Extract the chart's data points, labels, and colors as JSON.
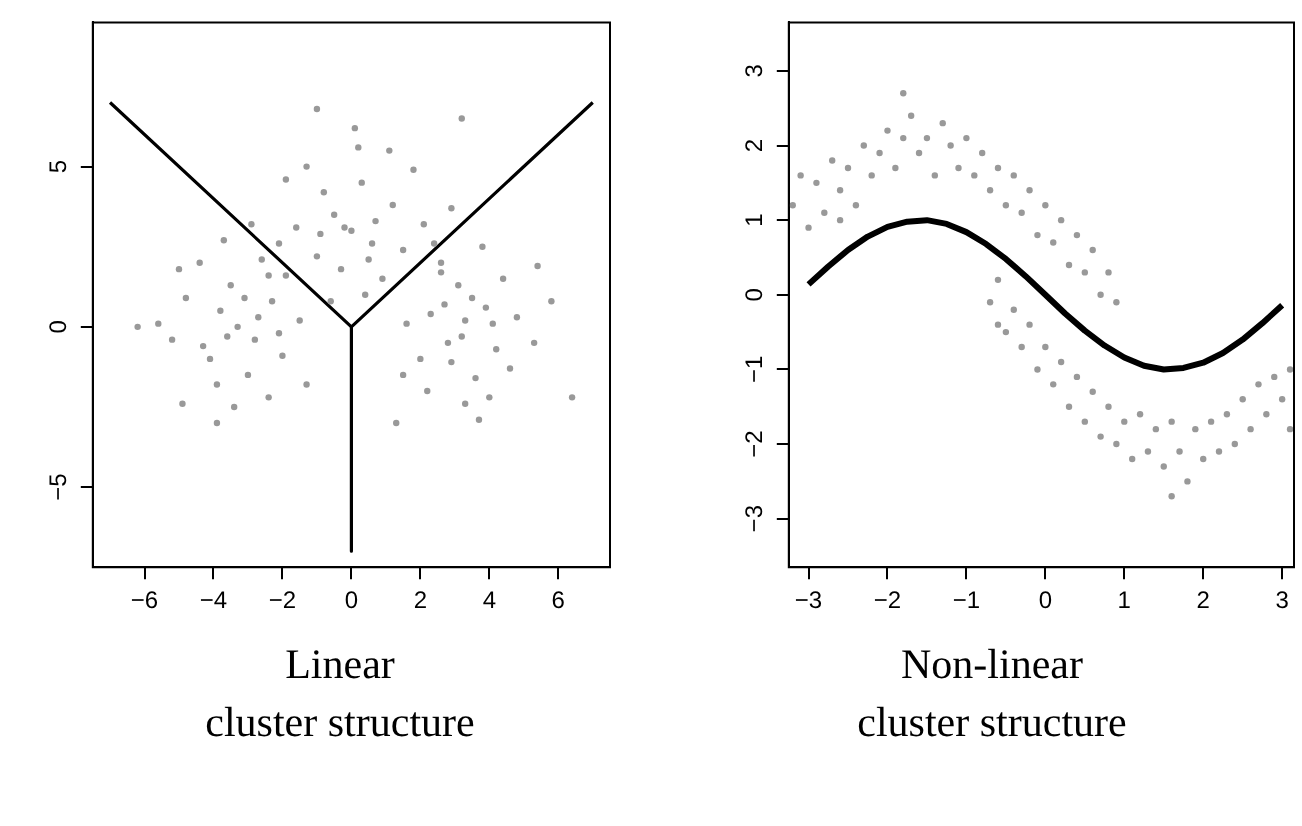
{
  "chart_data": [
    {
      "type": "scatter",
      "xlabel": "Linear cluster structure",
      "grid": false,
      "legend": false,
      "xlim": [
        -7.5,
        7.5
      ],
      "ylim": [
        -7.5,
        9.5
      ],
      "xticks": [
        {
          "value": -6,
          "label": "−6"
        },
        {
          "value": -4,
          "label": "−4"
        },
        {
          "value": -2,
          "label": "−2"
        },
        0,
        2,
        4,
        6
      ],
      "yticks": [
        {
          "value": -5,
          "label": "−5"
        },
        0,
        5
      ],
      "series": [
        {
          "marker": "circle",
          "color": "#999999",
          "x": [
            0,
            -0.5,
            0.6,
            -1,
            1.2,
            0.3,
            -0.8,
            1.5,
            -1.6,
            0.9,
            -0.3,
            2.1,
            -2.1,
            0.2,
            -1.3,
            1.8,
            0.4,
            -0.6,
            2.6,
            -2.4,
            0.1,
            -1.9,
            1.1,
            2.9,
            -0.2,
            0.7,
            -0.9,
            0.5,
            3.2,
            -1,
            -3.3,
            -3.8,
            -2.8,
            -4.3,
            -2.3,
            -3.5,
            -3,
            -4.8,
            -2,
            -3.9,
            -1.9,
            -5.2,
            -2.6,
            -4.4,
            -3.4,
            -1.5,
            -5.6,
            -2.4,
            -4.1,
            -3.1,
            -2.7,
            -3.6,
            -6.2,
            -2.9,
            -4.9,
            -1.3,
            -3.9,
            -5,
            -2.1,
            -3.7,
            3.3,
            2.8,
            3.9,
            2.3,
            4.2,
            3.1,
            3.6,
            4.8,
            2,
            2.6,
            4.4,
            3.3,
            5.3,
            1.6,
            4,
            2.2,
            3.8,
            5.8,
            1.5,
            2.9,
            3.5,
            4.6,
            5.4,
            2.4,
            3.2,
            4.1,
            6.4,
            1.3,
            3.7,
            2.7
          ],
          "values": [
            3,
            3.5,
            2.6,
            2.2,
            3.8,
            4.5,
            4.2,
            2.4,
            3.1,
            1.5,
            1.8,
            3.2,
            2.6,
            5.6,
            5,
            4.9,
            1,
            0.8,
            2,
            1.6,
            6.2,
            4.6,
            5.5,
            3.7,
            3.1,
            3.3,
            2.9,
            2.1,
            6.5,
            6.8,
            0,
            0.5,
            -0.4,
            -0.6,
            0.8,
            1.3,
            -1.5,
            0.9,
            -0.9,
            -1.8,
            1.6,
            -0.4,
            2.1,
            2,
            -2.5,
            0.2,
            0.1,
            -2.2,
            -1,
            0.9,
            0.3,
            -0.3,
            0,
            3.2,
            -2.4,
            -1.8,
            -3,
            1.8,
            -0.2,
            2.7,
            0.2,
            -0.5,
            0.6,
            0.4,
            -0.7,
            1.3,
            -1.6,
            0.3,
            -1,
            1.7,
            1.5,
            -2.4,
            -0.5,
            0.1,
            -2.2,
            -2,
            2.5,
            0.8,
            -1.5,
            -1.1,
            0.9,
            -1.3,
            1.9,
            2.6,
            -0.3,
            0.1,
            -2.2,
            -3,
            -2.9,
            0.7
          ]
        },
        {
          "type": "line",
          "marker": "none",
          "color": "#000000",
          "x": [
            -7,
            0,
            7
          ],
          "values": [
            7,
            0,
            7
          ]
        },
        {
          "type": "line",
          "marker": "none",
          "color": "#000000",
          "x": [
            0,
            0
          ],
          "values": [
            0,
            -7
          ]
        }
      ]
    },
    {
      "type": "scatter",
      "xlabel": "Non-linear cluster structure",
      "grid": false,
      "legend": false,
      "xlim": [
        -3.25,
        3.15
      ],
      "ylim": [
        -3.65,
        3.65
      ],
      "xticks": [
        {
          "value": -3,
          "label": "−3"
        },
        {
          "value": -2,
          "label": "−2"
        },
        {
          "value": -1,
          "label": "−1"
        },
        0,
        1,
        2,
        3
      ],
      "yticks": [
        {
          "value": -3,
          "label": "−3"
        },
        {
          "value": -2,
          "label": "−2"
        },
        {
          "value": -1,
          "label": "−1"
        },
        0,
        1,
        2,
        3
      ],
      "series": [
        {
          "marker": "circle",
          "color": "#999999",
          "x": [
            -3.2,
            -3.1,
            -3,
            -2.9,
            -2.8,
            -2.7,
            -2.6,
            -2.5,
            -2.4,
            -2.3,
            -2.2,
            -2.1,
            -2,
            -1.9,
            -1.8,
            -1.7,
            -1.6,
            -1.5,
            -1.4,
            -1.3,
            -1.2,
            -1.1,
            -1,
            -0.9,
            -0.8,
            -0.7,
            -0.6,
            -0.5,
            -0.4,
            -0.3,
            -0.2,
            -0.1,
            0,
            0.1,
            0.2,
            0.3,
            0.4,
            0.5,
            0.6,
            0.7,
            0.8,
            -1.8,
            -2.6,
            0.9,
            -0.7,
            -0.6,
            -0.5,
            -0.4,
            -0.3,
            -0.2,
            -0.1,
            0,
            0.1,
            0.2,
            0.3,
            0.4,
            0.5,
            0.6,
            0.7,
            0.8,
            0.9,
            1,
            1.1,
            1.2,
            1.3,
            1.4,
            1.5,
            1.6,
            1.7,
            1.8,
            1.9,
            2,
            2.1,
            2.2,
            2.3,
            2.4,
            2.5,
            2.6,
            2.7,
            2.8,
            2.9,
            3,
            3.1,
            1.6,
            -0.6,
            3.1
          ],
          "values": [
            1.2,
            1.6,
            0.9,
            1.5,
            1.1,
            1.8,
            1.4,
            1.7,
            1.2,
            2,
            1.6,
            1.9,
            2.2,
            1.7,
            2.1,
            2.4,
            1.9,
            2.1,
            1.6,
            2.3,
            2,
            1.7,
            2.1,
            1.6,
            1.9,
            1.4,
            1.7,
            1.2,
            1.6,
            1.1,
            1.4,
            0.8,
            1.2,
            0.7,
            1,
            0.4,
            0.8,
            0.3,
            0.6,
            0,
            0.3,
            2.7,
            1,
            -0.1,
            -0.1,
            0.2,
            -0.5,
            -0.2,
            -0.7,
            -0.4,
            -1,
            -0.7,
            -1.2,
            -0.9,
            -1.5,
            -1.1,
            -1.7,
            -1.3,
            -1.9,
            -1.5,
            -2,
            -1.7,
            -2.2,
            -1.6,
            -2.1,
            -1.8,
            -2.3,
            -1.7,
            -2.1,
            -2.5,
            -1.8,
            -2.2,
            -1.7,
            -2.1,
            -1.6,
            -2,
            -1.4,
            -1.8,
            -1.2,
            -1.6,
            -1.1,
            -1.4,
            -1,
            -2.7,
            -0.4,
            -1.8
          ]
        },
        {
          "type": "line",
          "marker": "none",
          "color": "#000000",
          "x": [
            -3,
            -2.75,
            -2.5,
            -2.25,
            -2,
            -1.75,
            -1.5,
            -1.25,
            -1,
            -0.75,
            -0.5,
            -0.25,
            0,
            0.25,
            0.5,
            0.75,
            1,
            1.25,
            1.5,
            1.75,
            2,
            2.25,
            2.5,
            2.75,
            3
          ],
          "values": [
            0.14,
            0.38,
            0.6,
            0.78,
            0.91,
            0.98,
            1,
            0.95,
            0.84,
            0.68,
            0.48,
            0.25,
            0,
            -0.25,
            -0.48,
            -0.68,
            -0.84,
            -0.95,
            -1,
            -0.98,
            -0.91,
            -0.78,
            -0.6,
            -0.38,
            -0.14
          ]
        }
      ]
    }
  ]
}
